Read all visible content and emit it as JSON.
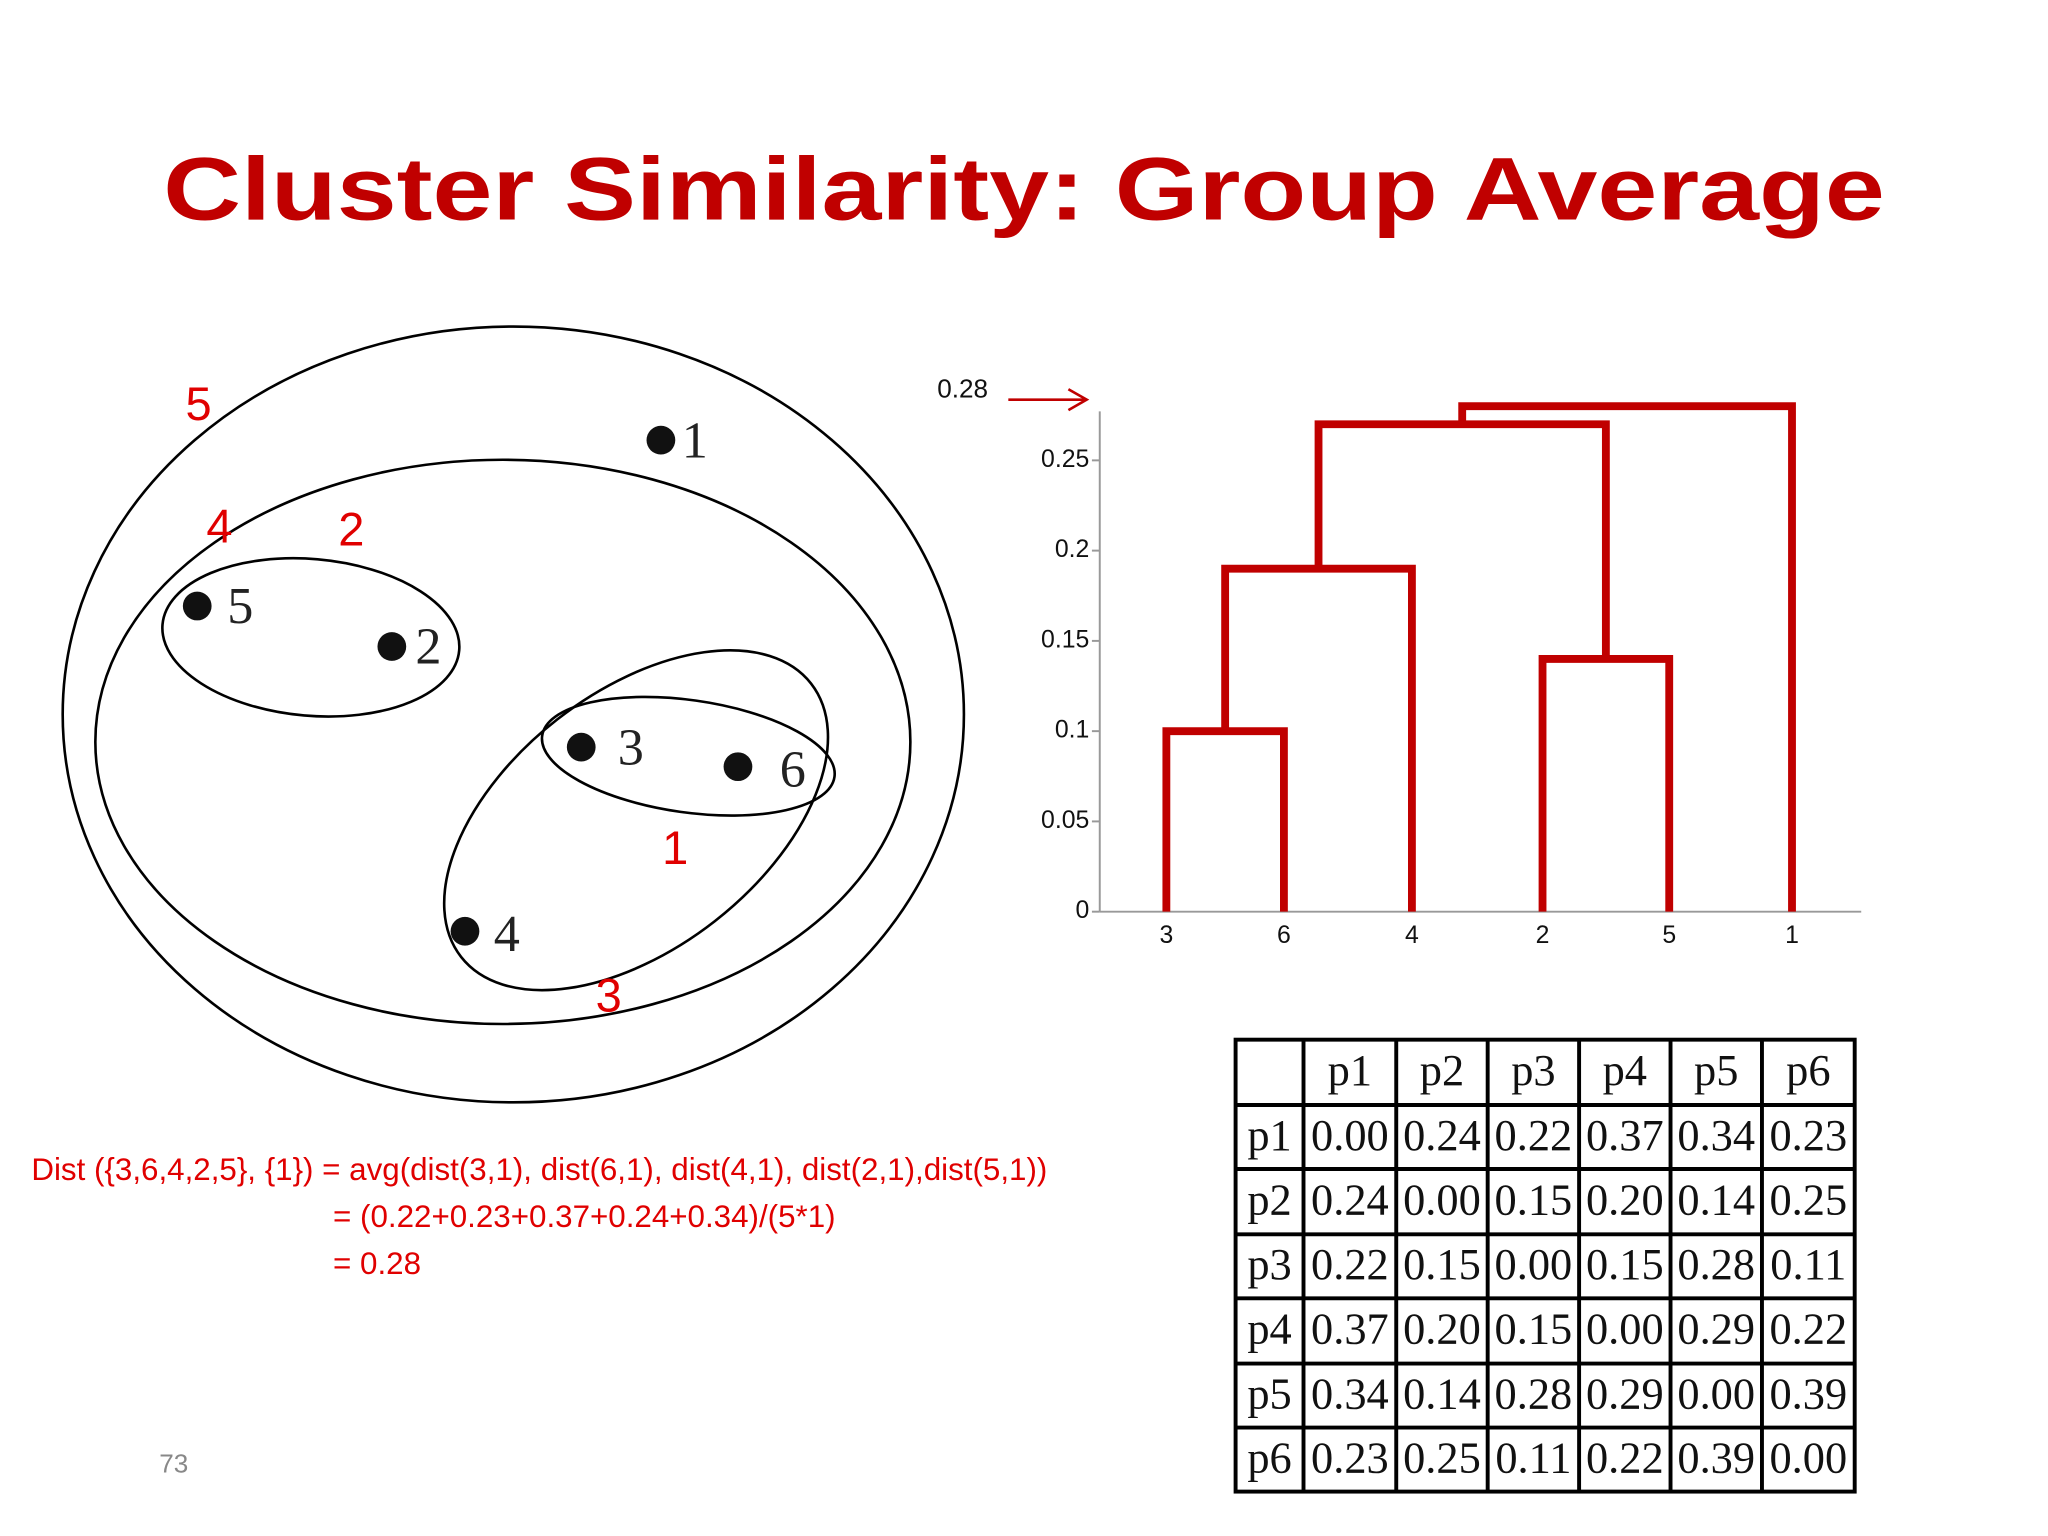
{
  "title": "Cluster Similarity: Group Average",
  "clusters": {
    "points": [
      "1",
      "2",
      "3",
      "4",
      "5",
      "6"
    ],
    "order_labels": [
      "1",
      "2",
      "3",
      "4",
      "5"
    ]
  },
  "dendrogram": {
    "leaves": [
      "3",
      "6",
      "4",
      "2",
      "5",
      "1"
    ],
    "ylim": [
      0,
      0.28
    ],
    "yticks": [
      0,
      0.05,
      0.1,
      0.15,
      0.2,
      0.25
    ],
    "merge_heights": [
      0.1,
      0.14,
      0.19,
      0.27,
      0.28
    ],
    "marker": {
      "value": 0.28,
      "label": "0.28"
    }
  },
  "formula": [
    "Dist ({3,6,4,2,5}, {1}) = avg(dist(3,1), dist(6,1), dist(4,1), dist(2,1),dist(5,1))",
    "= (0.22+0.23+0.37+0.24+0.34)/(5*1)",
    "= 0.28"
  ],
  "table": {
    "header": [
      "p1",
      "p2",
      "p3",
      "p4",
      "p5",
      "p6"
    ],
    "rows": [
      {
        "label": "p1",
        "values": [
          "0.00",
          "0.24",
          "0.22",
          "0.37",
          "0.34",
          "0.23"
        ]
      },
      {
        "label": "p2",
        "values": [
          "0.24",
          "0.00",
          "0.15",
          "0.20",
          "0.14",
          "0.25"
        ]
      },
      {
        "label": "p3",
        "values": [
          "0.22",
          "0.15",
          "0.00",
          "0.15",
          "0.28",
          "0.11"
        ]
      },
      {
        "label": "p4",
        "values": [
          "0.37",
          "0.20",
          "0.15",
          "0.00",
          "0.29",
          "0.22"
        ]
      },
      {
        "label": "p5",
        "values": [
          "0.34",
          "0.14",
          "0.28",
          "0.29",
          "0.00",
          "0.39"
        ]
      },
      {
        "label": "p6",
        "values": [
          "0.23",
          "0.25",
          "0.11",
          "0.22",
          "0.39",
          "0.00"
        ]
      }
    ]
  },
  "page_number": "73"
}
